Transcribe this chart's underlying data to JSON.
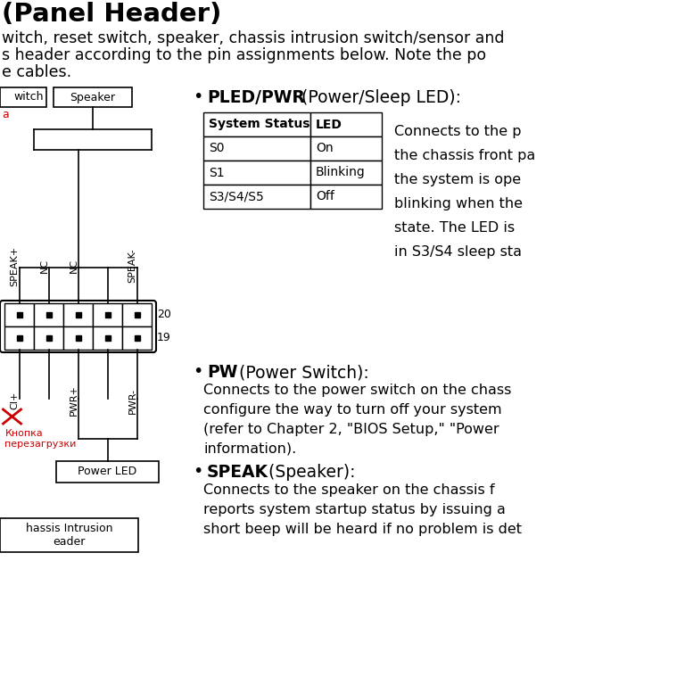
{
  "bg_color": "#ffffff",
  "table_headers": [
    "System Status",
    "LED"
  ],
  "table_rows": [
    [
      "S0",
      "On"
    ],
    [
      "S1",
      "Blinking"
    ],
    [
      "S3/S4/S5",
      "Off"
    ]
  ],
  "russian_label1": "Кнопка",
  "russian_label2": "перезагрузки",
  "russian_label_color": "#cc0000",
  "bullet1_desc_lines": [
    "Connects to the p",
    "the chassis front pa",
    "the system is ope",
    "blinking when the",
    "state. The LED is",
    "in S3/S4 sleep sta"
  ],
  "bullet2_desc_lines": [
    "Connects to the power switch on the chass",
    "configure the way to turn off your system",
    "(refer to Chapter 2, \"BIOS Setup,\" \"Power",
    "information)."
  ],
  "bullet3_desc_lines": [
    "Connects to the speaker on the chassis f",
    "reports system startup status by issuing a",
    "short beep will be heard if no problem is det"
  ]
}
